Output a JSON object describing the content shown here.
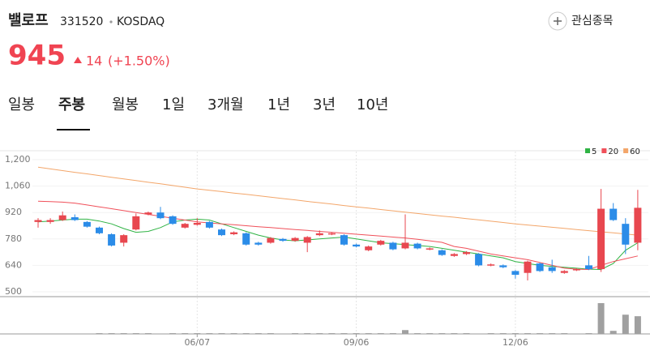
{
  "header": {
    "name": "밸로프",
    "code": "331520",
    "market": "KOSDAQ",
    "watch": "관심종목",
    "price": "945",
    "change": "14",
    "change_pct": "(+1.50%)"
  },
  "tabs": [
    "일봉",
    "주봉",
    "월봉",
    "1일",
    "3개월",
    "1년",
    "3년",
    "10년"
  ],
  "chart_data": {
    "type": "candlestick",
    "x": [
      null,
      null,
      null,
      null,
      null,
      null,
      null,
      null,
      null,
      null,
      null,
      null,
      null,
      "06/07",
      null,
      null,
      null,
      null,
      null,
      null,
      null,
      null,
      null,
      null,
      null,
      null,
      "09/06",
      null,
      null,
      null,
      null,
      null,
      null,
      null,
      null,
      null,
      null,
      null,
      null,
      "12/06",
      null,
      null,
      null,
      null,
      null,
      null,
      null,
      null,
      null,
      null
    ],
    "open": [
      870,
      870,
      880,
      895,
      870,
      840,
      805,
      760,
      830,
      910,
      920,
      900,
      840,
      855,
      870,
      830,
      805,
      810,
      760,
      760,
      780,
      770,
      760,
      800,
      805,
      800,
      750,
      720,
      750,
      760,
      730,
      755,
      725,
      720,
      690,
      700,
      700,
      640,
      640,
      610,
      600,
      650,
      630,
      600,
      615,
      640,
      620,
      940,
      860,
      760
    ],
    "high": [
      890,
      890,
      925,
      910,
      875,
      845,
      810,
      805,
      915,
      925,
      950,
      905,
      865,
      890,
      875,
      835,
      820,
      815,
      765,
      790,
      785,
      790,
      795,
      825,
      815,
      805,
      755,
      745,
      775,
      765,
      910,
      760,
      735,
      725,
      705,
      715,
      705,
      650,
      645,
      615,
      665,
      655,
      670,
      615,
      625,
      690,
      1045,
      970,
      890,
      1040
    ],
    "low": [
      840,
      860,
      875,
      875,
      840,
      805,
      740,
      740,
      825,
      905,
      885,
      855,
      835,
      850,
      835,
      795,
      800,
      745,
      745,
      755,
      765,
      765,
      710,
      795,
      800,
      745,
      735,
      715,
      745,
      720,
      725,
      725,
      720,
      690,
      685,
      695,
      635,
      635,
      625,
      570,
      560,
      605,
      600,
      595,
      610,
      615,
      605,
      875,
      700,
      720
    ],
    "close": [
      880,
      880,
      905,
      880,
      845,
      810,
      745,
      800,
      900,
      920,
      890,
      860,
      860,
      865,
      840,
      800,
      815,
      750,
      750,
      785,
      770,
      785,
      790,
      810,
      810,
      750,
      740,
      740,
      770,
      725,
      760,
      730,
      730,
      695,
      700,
      710,
      640,
      645,
      630,
      590,
      660,
      610,
      610,
      610,
      620,
      620,
      940,
      880,
      750,
      945
    ],
    "volume": [
      0,
      0,
      0,
      0,
      0,
      1,
      1,
      1,
      1,
      1,
      0,
      1,
      1,
      1,
      1,
      1,
      1,
      1,
      1,
      1,
      0,
      1,
      1,
      1,
      1,
      1,
      1,
      1,
      1,
      1,
      5,
      1,
      1,
      1,
      1,
      1,
      0,
      1,
      1,
      1,
      1,
      1,
      1,
      1,
      0,
      1,
      40,
      4,
      25,
      23
    ],
    "up_color": "#e8474f",
    "down_color": "#2b8ce8",
    "volume_color": "#a0a0a0",
    "series": [
      {
        "name": "5",
        "color": "#2fb344",
        "values": [
          870,
          875,
          880,
          885,
          885,
          875,
          860,
          835,
          815,
          820,
          840,
          870,
          880,
          885,
          880,
          860,
          840,
          820,
          800,
          785,
          775,
          770,
          775,
          780,
          785,
          790,
          780,
          770,
          760,
          755,
          750,
          745,
          740,
          730,
          720,
          710,
          700,
          690,
          680,
          660,
          650,
          640,
          635,
          630,
          625,
          620,
          618,
          650,
          720,
          760
        ]
      },
      {
        "name": "20",
        "color": "#f0505a",
        "values": [
          980,
          978,
          975,
          970,
          960,
          950,
          940,
          930,
          920,
          910,
          900,
          890,
          880,
          870,
          865,
          860,
          855,
          850,
          845,
          840,
          835,
          830,
          825,
          820,
          815,
          810,
          805,
          800,
          795,
          790,
          785,
          778,
          770,
          762,
          740,
          730,
          715,
          700,
          690,
          680,
          670,
          655,
          640,
          625,
          620,
          618,
          640,
          660,
          675,
          690
        ]
      },
      {
        "name": "60",
        "color": "#f3a66a",
        "values": [
          1160,
          1151,
          1142,
          1133,
          1125,
          1116,
          1107,
          1098,
          1089,
          1080,
          1072,
          1063,
          1054,
          1045,
          1038,
          1031,
          1023,
          1016,
          1009,
          1001,
          994,
          987,
          979,
          972,
          965,
          957,
          950,
          943,
          936,
          929,
          922,
          915,
          908,
          901,
          895,
          888,
          881,
          874,
          867,
          860,
          854,
          848,
          842,
          836,
          830,
          824,
          818,
          812,
          806,
          800
        ]
      }
    ],
    "ylim": [
      500,
      1200
    ],
    "yticks": [
      500,
      640,
      780,
      920,
      {
        "value": 1060,
        "label": "1,060"
      },
      {
        "value": 1200,
        "label": "1,200"
      }
    ],
    "grid": true
  }
}
